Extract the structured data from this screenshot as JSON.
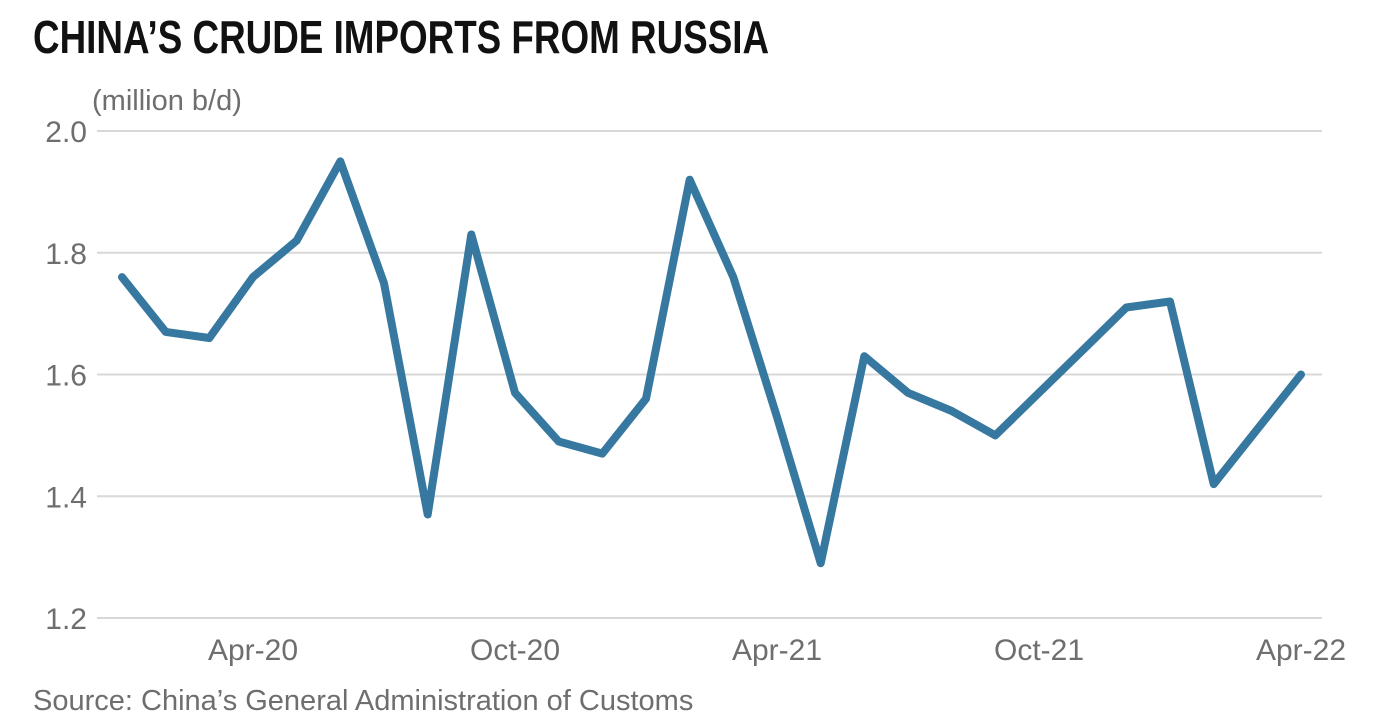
{
  "header": {
    "title": "CHINA’S CRUDE IMPORTS FROM RUSSIA",
    "units": "(million b/d)"
  },
  "source": {
    "text": "Source: China’s General Administration of Customs"
  },
  "colors": {
    "line": "#3678a0",
    "grid": "#d8d8d8",
    "title_text": "#111111",
    "axis_text": "#6e6e6e"
  },
  "chart_data": {
    "type": "line",
    "title": "CHINA’S CRUDE IMPORTS FROM RUSSIA",
    "ylabel": "(million b/d)",
    "xlabel": "",
    "x": [
      "Jan-20",
      "Feb-20",
      "Mar-20",
      "Apr-20",
      "May-20",
      "Jun-20",
      "Jul-20",
      "Aug-20",
      "Sep-20",
      "Oct-20",
      "Nov-20",
      "Dec-20",
      "Jan-21",
      "Feb-21",
      "Mar-21",
      "Apr-21",
      "May-21",
      "Jun-21",
      "Jul-21",
      "Aug-21",
      "Sep-21",
      "Oct-21",
      "Nov-21",
      "Dec-21",
      "Jan-22",
      "Feb-22",
      "Mar-22",
      "Apr-22"
    ],
    "values": [
      1.76,
      1.67,
      1.66,
      1.76,
      1.82,
      1.95,
      1.75,
      1.37,
      1.83,
      1.57,
      1.49,
      1.47,
      1.56,
      1.92,
      1.76,
      1.53,
      1.29,
      1.63,
      1.57,
      1.54,
      1.5,
      1.57,
      1.64,
      1.71,
      1.72,
      1.42,
      1.51,
      1.6
    ],
    "ylim": [
      1.2,
      2.0
    ],
    "yticks": [
      "2.0",
      "1.8",
      "1.6",
      "1.4",
      "1.2"
    ],
    "xticks": [
      {
        "label": "Apr-20",
        "index": 3
      },
      {
        "label": "Oct-20",
        "index": 9
      },
      {
        "label": "Apr-21",
        "index": 15
      },
      {
        "label": "Oct-21",
        "index": 21
      },
      {
        "label": "Apr-22",
        "index": 27
      }
    ],
    "grid": "horizontal",
    "legend": "none",
    "source": "Source: China’s General Administration of Customs"
  }
}
